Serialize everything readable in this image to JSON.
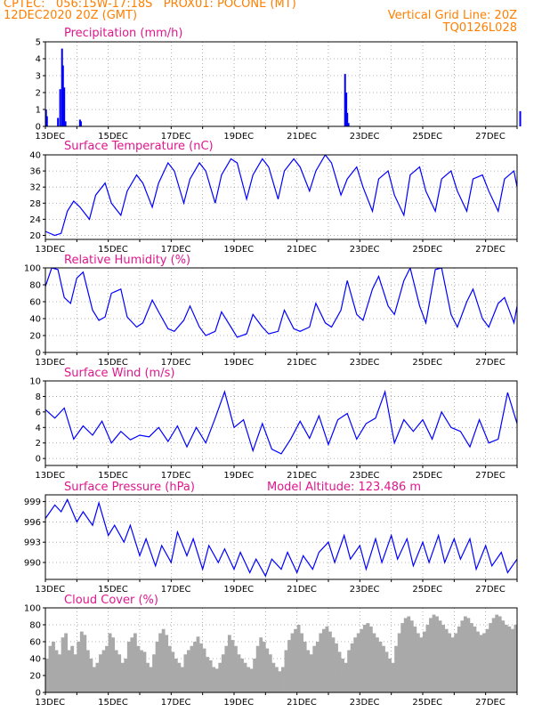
{
  "header": {
    "line1": "CPTEC:   056:15W-17:18S   PROX01: POCONE (MT)",
    "line2": "12DEC2020 20Z (GMT)",
    "grid_note": "Vertical Grid Line: 20Z",
    "code": "TQ0126L028"
  },
  "colors": {
    "header": "#ff7f00",
    "panel_title": "#e0178d",
    "series": "#0000ff",
    "cloud": "#a9a9a9",
    "grid": "#999999"
  },
  "x_labels": [
    "13DEC",
    "15DEC",
    "17DEC",
    "19DEC",
    "21DEC",
    "23DEC",
    "25DEC",
    "27DEC"
  ],
  "panels": {
    "precip": {
      "title": "Precipitation (mm/h)",
      "yticks": [
        "5",
        "4",
        "3",
        "2",
        "1",
        "0"
      ]
    },
    "temp": {
      "title": "Surface Temperature (nC)",
      "yticks": [
        "40",
        "36",
        "32",
        "28",
        "24",
        "20"
      ]
    },
    "rh": {
      "title": "Relative Humidity (%)",
      "yticks": [
        "100",
        "80",
        "60",
        "40",
        "20",
        "0"
      ]
    },
    "wind": {
      "title": "Surface Wind (m/s)",
      "yticks": [
        "10",
        "8",
        "6",
        "4",
        "2",
        "0"
      ]
    },
    "pressure": {
      "title": "Surface Pressure (hPa)",
      "subtitle": "Model Altitude: 123.486 m",
      "yticks": [
        "999",
        "996",
        "993",
        "990"
      ]
    },
    "cloud": {
      "title": "Cloud Cover (%)",
      "yticks": [
        "100",
        "80",
        "60",
        "40",
        "20",
        "0"
      ]
    }
  },
  "chart_data": [
    {
      "type": "bar",
      "title": "Precipitation (mm/h)",
      "ylim": [
        0,
        5
      ],
      "x_unit": "days since 12DEC2020 20Z",
      "x": [
        0.02,
        0.05,
        0.4,
        0.47,
        0.53,
        0.56,
        0.6,
        0.64,
        1.1,
        1.13,
        9.53,
        9.57,
        9.6,
        9.64,
        15.1
      ],
      "values": [
        1.0,
        0.6,
        0.5,
        2.2,
        4.6,
        3.6,
        2.3,
        0.3,
        0.4,
        0.3,
        3.1,
        2.0,
        0.8,
        0.2,
        0.9
      ]
    },
    {
      "type": "line",
      "title": "Surface Temperature (nC)",
      "ylim": [
        19,
        40
      ],
      "x": [
        0.0,
        0.3,
        0.5,
        0.7,
        0.9,
        1.1,
        1.4,
        1.6,
        1.9,
        2.1,
        2.4,
        2.6,
        2.9,
        3.1,
        3.4,
        3.6,
        3.9,
        4.1,
        4.4,
        4.6,
        4.9,
        5.1,
        5.4,
        5.6,
        5.9,
        6.1,
        6.4,
        6.6,
        6.9,
        7.1,
        7.4,
        7.6,
        7.9,
        8.1,
        8.4,
        8.6,
        8.9,
        9.1,
        9.4,
        9.6,
        9.9,
        10.1,
        10.4,
        10.6,
        10.9,
        11.1,
        11.4,
        11.6,
        11.9,
        12.1,
        12.4,
        12.6,
        12.9,
        13.1,
        13.4,
        13.6,
        13.9,
        14.1,
        14.4,
        14.6,
        14.9,
        15.0
      ],
      "values": [
        21,
        20,
        20.5,
        26,
        28.5,
        27,
        24,
        30,
        33,
        28,
        25,
        31,
        35,
        33,
        27,
        33,
        38,
        36,
        28,
        34,
        38,
        36,
        28,
        35,
        39,
        38,
        29,
        35,
        39,
        37,
        29,
        36,
        39,
        37,
        31,
        36,
        40,
        38,
        30,
        34,
        37,
        32,
        26,
        34,
        36,
        30,
        25,
        35,
        37,
        31,
        26,
        34,
        36,
        31,
        26,
        34,
        35,
        31,
        26,
        34,
        36,
        32
      ]
    },
    {
      "type": "line",
      "title": "Relative Humidity (%)",
      "ylim": [
        0,
        100
      ],
      "x": [
        0.0,
        0.2,
        0.4,
        0.6,
        0.8,
        1.0,
        1.2,
        1.5,
        1.7,
        1.9,
        2.1,
        2.4,
        2.6,
        2.9,
        3.1,
        3.4,
        3.6,
        3.9,
        4.1,
        4.4,
        4.6,
        4.9,
        5.1,
        5.4,
        5.6,
        5.9,
        6.1,
        6.4,
        6.6,
        6.9,
        7.1,
        7.4,
        7.6,
        7.9,
        8.1,
        8.4,
        8.6,
        8.9,
        9.1,
        9.4,
        9.6,
        9.9,
        10.1,
        10.4,
        10.6,
        10.9,
        11.1,
        11.4,
        11.6,
        11.9,
        12.1,
        12.4,
        12.6,
        12.9,
        13.1,
        13.4,
        13.6,
        13.9,
        14.1,
        14.4,
        14.6,
        14.9,
        15.0
      ],
      "values": [
        78,
        100,
        98,
        65,
        58,
        88,
        95,
        50,
        38,
        42,
        70,
        75,
        42,
        30,
        35,
        62,
        48,
        28,
        25,
        38,
        55,
        30,
        20,
        25,
        48,
        30,
        18,
        22,
        45,
        30,
        22,
        25,
        50,
        28,
        25,
        30,
        58,
        35,
        30,
        50,
        85,
        45,
        38,
        75,
        90,
        55,
        45,
        85,
        100,
        55,
        35,
        98,
        100,
        45,
        30,
        60,
        75,
        40,
        30,
        58,
        65,
        35,
        55
      ]
    },
    {
      "type": "line",
      "title": "Surface Wind (m/s)",
      "ylim": [
        0,
        10
      ],
      "x": [
        0.0,
        0.3,
        0.6,
        0.9,
        1.2,
        1.5,
        1.8,
        2.1,
        2.4,
        2.7,
        3.0,
        3.3,
        3.6,
        3.9,
        4.2,
        4.5,
        4.8,
        5.1,
        5.4,
        5.7,
        6.0,
        6.3,
        6.6,
        6.9,
        7.2,
        7.5,
        7.8,
        8.1,
        8.4,
        8.7,
        9.0,
        9.3,
        9.6,
        9.9,
        10.2,
        10.5,
        10.8,
        11.1,
        11.4,
        11.7,
        12.0,
        12.3,
        12.6,
        12.9,
        13.2,
        13.5,
        13.8,
        14.1,
        14.4,
        14.7,
        15.0
      ],
      "values": [
        6.3,
        5.2,
        6.5,
        2.5,
        4.2,
        3.0,
        4.8,
        2.0,
        3.5,
        2.4,
        3.0,
        2.8,
        4.0,
        2.2,
        4.2,
        1.5,
        4.0,
        2.0,
        5.2,
        8.6,
        4.0,
        5.0,
        1.0,
        4.5,
        1.2,
        0.6,
        2.5,
        4.8,
        2.6,
        5.5,
        1.8,
        5.0,
        5.8,
        2.5,
        4.5,
        5.2,
        8.6,
        2.0,
        5.0,
        3.5,
        5.0,
        2.5,
        6.0,
        4.0,
        3.5,
        1.5,
        5.0,
        2.0,
        2.5,
        8.5,
        4.5
      ]
    },
    {
      "type": "line",
      "title": "Surface Pressure (hPa)",
      "ylim": [
        987.5,
        1000
      ],
      "x": [
        0.0,
        0.3,
        0.5,
        0.7,
        1.0,
        1.2,
        1.5,
        1.7,
        2.0,
        2.2,
        2.5,
        2.7,
        3.0,
        3.2,
        3.5,
        3.7,
        4.0,
        4.2,
        4.5,
        4.7,
        5.0,
        5.2,
        5.5,
        5.7,
        6.0,
        6.2,
        6.5,
        6.7,
        7.0,
        7.2,
        7.5,
        7.7,
        8.0,
        8.2,
        8.5,
        8.7,
        9.0,
        9.2,
        9.5,
        9.7,
        10.0,
        10.2,
        10.5,
        10.7,
        11.0,
        11.2,
        11.5,
        11.7,
        12.0,
        12.2,
        12.5,
        12.7,
        13.0,
        13.2,
        13.5,
        13.7,
        14.0,
        14.2,
        14.5,
        14.7,
        15.0
      ],
      "values": [
        996.5,
        998.5,
        997.5,
        999.3,
        996.0,
        997.5,
        995.5,
        998.8,
        994.0,
        995.5,
        993.0,
        995.5,
        991.0,
        993.5,
        989.5,
        992.5,
        990.0,
        994.5,
        991.0,
        993.5,
        989.0,
        992.5,
        990.0,
        992.0,
        989.0,
        991.5,
        988.5,
        990.5,
        988.0,
        990.5,
        989.0,
        991.5,
        988.5,
        991.0,
        989.0,
        991.5,
        993.0,
        990.0,
        994.0,
        990.5,
        992.5,
        989.0,
        993.5,
        990.0,
        994.0,
        990.5,
        993.5,
        989.5,
        993.0,
        990.0,
        994.0,
        990.0,
        993.5,
        990.5,
        993.5,
        989.0,
        992.5,
        989.5,
        991.5,
        988.5,
        990.5
      ]
    },
    {
      "type": "bar",
      "title": "Cloud Cover (%)",
      "ylim": [
        0,
        100
      ],
      "x_start": 0.0,
      "x_step": 0.1,
      "values": [
        40,
        55,
        60,
        50,
        45,
        65,
        70,
        50,
        55,
        45,
        60,
        72,
        68,
        50,
        40,
        30,
        35,
        45,
        50,
        55,
        70,
        65,
        50,
        45,
        35,
        40,
        60,
        65,
        70,
        55,
        50,
        48,
        35,
        30,
        45,
        60,
        70,
        75,
        68,
        55,
        48,
        40,
        35,
        30,
        45,
        50,
        55,
        60,
        66,
        58,
        52,
        42,
        38,
        30,
        28,
        35,
        45,
        55,
        68,
        62,
        55,
        45,
        40,
        35,
        30,
        28,
        40,
        55,
        65,
        60,
        52,
        45,
        35,
        30,
        25,
        30,
        50,
        62,
        70,
        75,
        80,
        70,
        60,
        50,
        45,
        55,
        60,
        70,
        75,
        78,
        72,
        65,
        58,
        48,
        40,
        35,
        50,
        58,
        65,
        70,
        75,
        80,
        82,
        78,
        70,
        65,
        60,
        55,
        48,
        40,
        35,
        55,
        70,
        82,
        88,
        90,
        85,
        78,
        70,
        65,
        72,
        80,
        88,
        92,
        90,
        85,
        80,
        75,
        70,
        65,
        70,
        78,
        85,
        90,
        88,
        82,
        78,
        72,
        68,
        70,
        75,
        82,
        88,
        92,
        90,
        85,
        80,
        78,
        75,
        80
      ]
    }
  ]
}
